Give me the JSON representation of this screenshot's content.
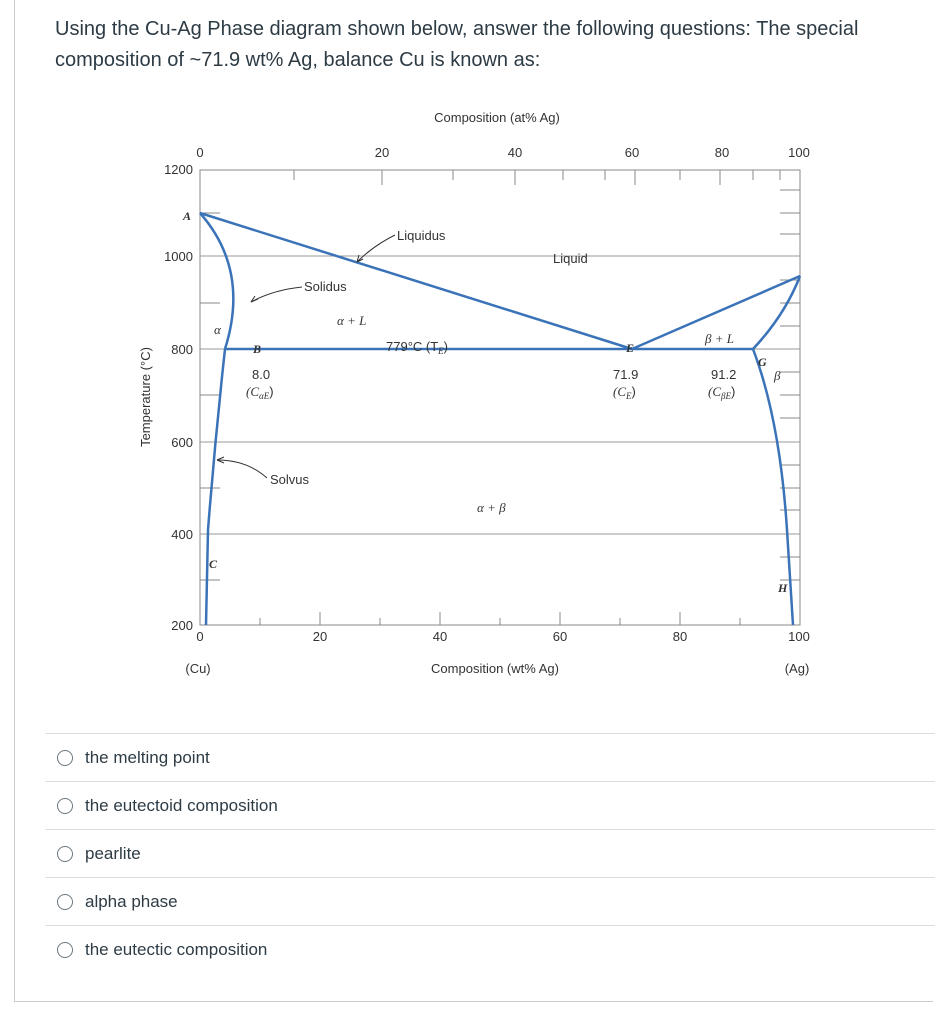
{
  "question": {
    "text": "Using the Cu-Ag Phase diagram shown below, answer the following questions: The special composition of ~71.9 wt% Ag, balance Cu is known as:"
  },
  "diagram": {
    "top_axis_title": "Composition (at% Ag)",
    "top_ticks": [
      "0",
      "20",
      "40",
      "60",
      "80",
      "100"
    ],
    "bottom_axis_title": "Composition (wt% Ag)",
    "bottom_ticks": [
      "0",
      "20",
      "40",
      "60",
      "80",
      "100"
    ],
    "left_axis_title": "Temperature (°C)",
    "y_ticks": [
      "1200",
      "1000",
      "800",
      "600",
      "400",
      "200"
    ],
    "end_left": "(Cu)",
    "end_right": "(Ag)",
    "labels": {
      "liquidus": "Liquidus",
      "liquid": "Liquid",
      "solidus": "Solidus",
      "solvus": "Solvus",
      "alpha_plus_l": "α + L",
      "beta_plus_l": "β + L",
      "alpha_plus_beta": "α + β",
      "alpha": "α",
      "beta": "β",
      "eutectic_temp": "779°C (T",
      "eutectic_temp_sub": "E",
      "eutectic_temp_close": ")",
      "point_a": "A",
      "point_b": "B",
      "point_c": "C",
      "point_e": "E",
      "point_g": "G",
      "point_h": "H",
      "c_alpha_e_value": "8.0",
      "c_alpha_e_label": "(C",
      "c_alpha_e_sub": "αE",
      "c_alpha_e_close": ")",
      "c_e_value": "71.9",
      "c_e_label": "(C",
      "c_e_sub": "E",
      "c_e_close": ")",
      "c_beta_e_value": "91.2",
      "c_beta_e_label": "(C",
      "c_beta_e_sub": "βE",
      "c_beta_e_close": ")"
    },
    "colors": {
      "phase_line": "#3b73b9",
      "grid": "#888888"
    }
  },
  "answers": [
    {
      "label": "the melting point"
    },
    {
      "label": "the eutectoid composition"
    },
    {
      "label": "pearlite"
    },
    {
      "label": "alpha phase"
    },
    {
      "label": "the eutectic composition"
    }
  ]
}
